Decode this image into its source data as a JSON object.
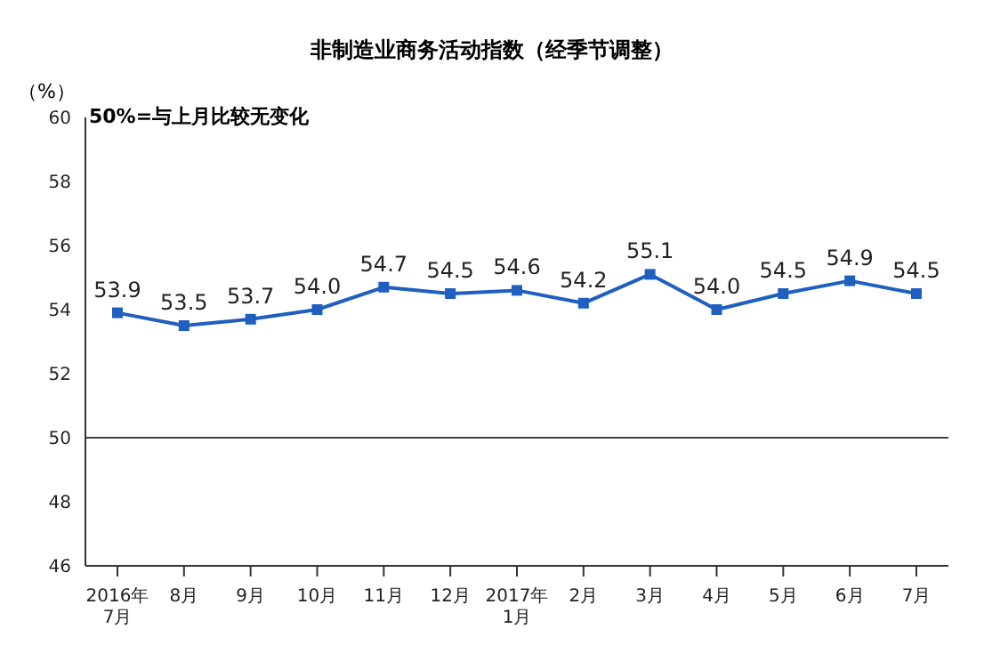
{
  "chart_data": {
    "type": "line",
    "title": "非制造业商务活动指数（经季节调整）",
    "ylabel": "（%）",
    "annotations": [
      "50%=与上月比较无变化"
    ],
    "categories": [
      "2016年\n7月",
      "8月",
      "9月",
      "10月",
      "11月",
      "12月",
      "2017年\n1月",
      "2月",
      "3月",
      "4月",
      "5月",
      "6月",
      "7月"
    ],
    "series": [
      {
        "color": "#1f5fbf",
        "values": [
          53.9,
          53.5,
          53.7,
          54.0,
          54.7,
          54.5,
          54.6,
          54.2,
          55.1,
          54.0,
          54.5,
          54.9,
          54.5
        ],
        "value_labels": [
          "53.9",
          "53.5",
          "53.7",
          "54.0",
          "54.7",
          "54.5",
          "54.6",
          "54.2",
          "55.1",
          "54.0",
          "54.5",
          "54.9",
          "54.5"
        ]
      }
    ],
    "ylim": [
      46,
      60
    ],
    "yticks": [
      46,
      48,
      50,
      52,
      54,
      56,
      58,
      60
    ],
    "ref_lines": [
      {
        "axis": "y",
        "value": 50,
        "color": "#404040"
      }
    ],
    "grid": false,
    "legend": false,
    "marker": "square",
    "line_style": "solid"
  }
}
